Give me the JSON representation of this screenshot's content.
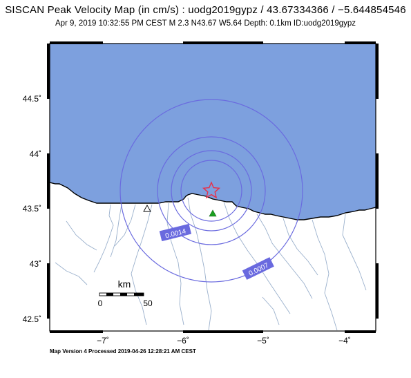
{
  "header": {
    "title": "SISCAN Peak Velocity Map (in cm/s) : uodg2019gypz / 43.67334366 / −5.644854546",
    "subtitle": "Apr  9, 2019 10:32:55 PM CEST   M 2.3   N43.67 W5.64   Depth: 0.1km   ID:uodg2019gypz"
  },
  "map": {
    "lat_labels": [
      "44.5˚",
      "44˚",
      "43.5˚",
      "43˚",
      "42.5˚"
    ],
    "lon_labels": [
      "−7˚",
      "−6˚",
      "−5˚",
      "−4˚"
    ],
    "contours": [
      {
        "label": "0.0014"
      },
      {
        "label": "0.0007"
      }
    ],
    "scale_bar": {
      "unit": "km",
      "start": "0",
      "end": "50"
    },
    "colors": {
      "sea": "#7da0de",
      "land": "#ffffff",
      "contour": "#6a6adf",
      "rivers": "#9ab0cc",
      "epicenter": "#e83048",
      "station_filled": "#1aa020"
    },
    "icons": {
      "epicenter": "star-icon",
      "station_filled": "triangle-icon",
      "station_open": "triangle-outline-icon"
    }
  },
  "footer": {
    "processed": "Map Version 4 Processed 2019-04-26 12:28:21 AM CEST"
  }
}
